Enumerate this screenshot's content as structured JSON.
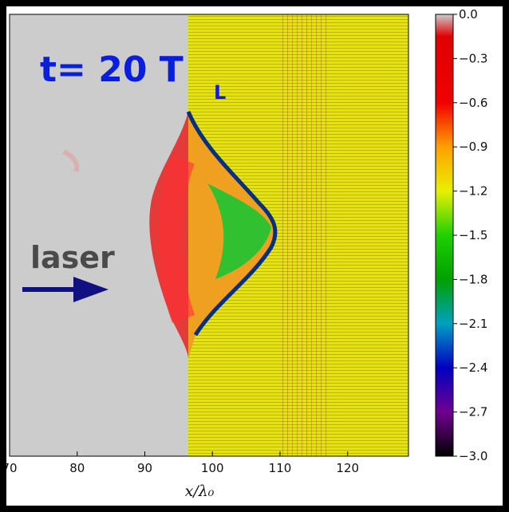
{
  "chart_data": {
    "type": "heatmap",
    "xlabel": "x/λ₀",
    "xlim": [
      70,
      129
    ],
    "xticks": [
      70,
      80,
      90,
      100,
      110,
      120
    ],
    "colorbar": {
      "lim": [
        -3.0,
        0.0
      ],
      "ticks": [
        {
          "value": 0.0,
          "label": "0.0"
        },
        {
          "value": -0.3,
          "label": "−0.3"
        },
        {
          "value": -0.6,
          "label": "−0.6"
        },
        {
          "value": -0.9,
          "label": "−0.9"
        },
        {
          "value": -1.2,
          "label": "−1.2"
        },
        {
          "value": -1.5,
          "label": "−1.5"
        },
        {
          "value": -1.8,
          "label": "−1.8"
        },
        {
          "value": -2.1,
          "label": "−2.1"
        },
        {
          "value": -2.4,
          "label": "−2.4"
        },
        {
          "value": -2.7,
          "label": "−2.7"
        },
        {
          "value": -3.0,
          "label": "−3.0"
        }
      ]
    },
    "annotations": {
      "time": "t= 20 T",
      "time_subscript": "L",
      "laser": "laser"
    }
  }
}
